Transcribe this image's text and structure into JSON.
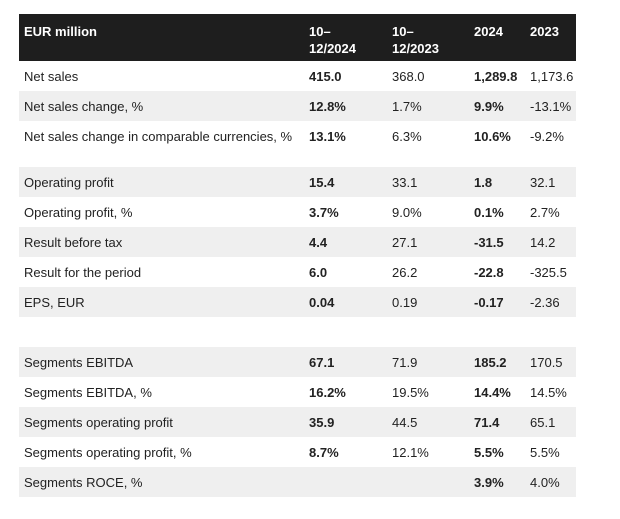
{
  "header": [
    "EUR million",
    "10–\n12/2024",
    "10–\n12/2023",
    "2024",
    "2023"
  ],
  "rows": [
    {
      "label": "Net sales",
      "v": [
        "415.0",
        "368.0",
        "1,289.8",
        "1,173.6"
      ]
    },
    {
      "label": "Net sales change, %",
      "v": [
        "12.8%",
        "1.7%",
        "9.9%",
        "-13.1%"
      ]
    },
    {
      "label": "Net sales change in comparable currencies, %",
      "v": [
        "13.1%",
        "6.3%",
        "10.6%",
        "-9.2%"
      ]
    },
    {
      "label": "Operating profit",
      "v": [
        "15.4",
        "33.1",
        "1.8",
        "32.1"
      ]
    },
    {
      "label": "Operating profit, %",
      "v": [
        "3.7%",
        "9.0%",
        "0.1%",
        "2.7%"
      ]
    },
    {
      "label": "Result before tax",
      "v": [
        "4.4",
        "27.1",
        "-31.5",
        "14.2"
      ]
    },
    {
      "label": "Result for the period",
      "v": [
        "6.0",
        "26.2",
        "-22.8",
        "-325.5"
      ]
    },
    {
      "label": "EPS, EUR",
      "v": [
        "0.04",
        "0.19",
        "-0.17",
        "-2.36"
      ]
    },
    {
      "label": "Segments EBITDA",
      "v": [
        "67.1",
        "71.9",
        "185.2",
        "170.5"
      ]
    },
    {
      "label": "Segments EBITDA, %",
      "v": [
        "16.2%",
        "19.5%",
        "14.4%",
        "14.5%"
      ]
    },
    {
      "label": "Segments operating profit",
      "v": [
        "35.9",
        "44.5",
        "71.4",
        "65.1"
      ]
    },
    {
      "label": "Segments operating profit, %",
      "v": [
        "8.7%",
        "12.1%",
        "5.5%",
        "5.5%"
      ]
    },
    {
      "label": "Segments ROCE, %",
      "v": [
        "",
        "",
        "3.9%",
        "4.0%"
      ]
    }
  ]
}
